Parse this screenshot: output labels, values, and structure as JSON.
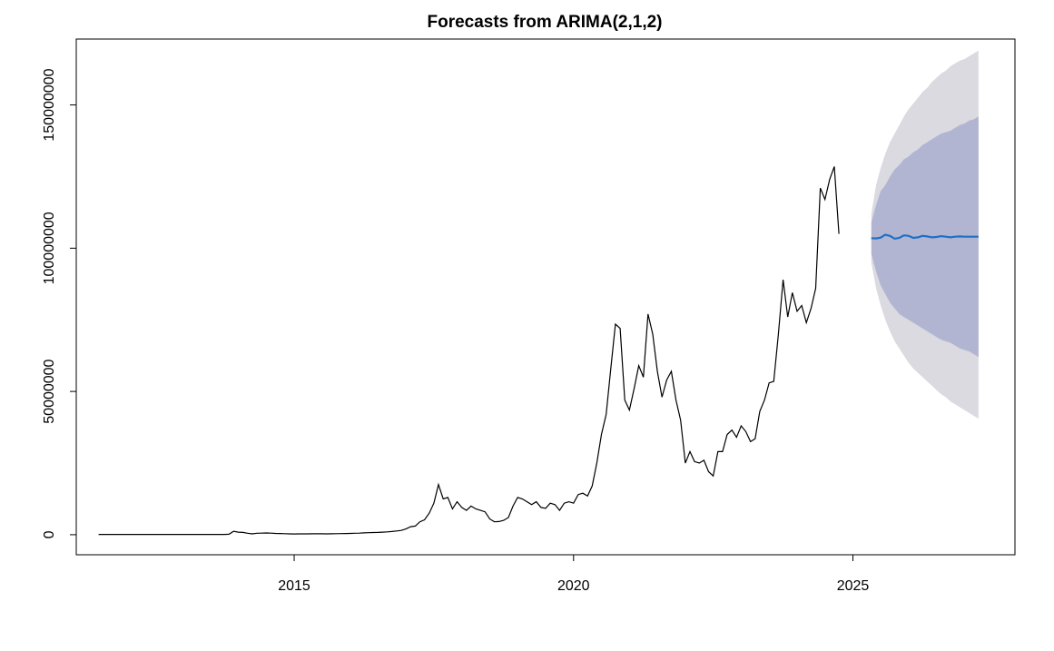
{
  "chart_data": {
    "type": "line",
    "title": "Forecasts from ARIMA(2,1,2)",
    "xlabel": "",
    "ylabel": "",
    "xlim": [
      2011.1,
      2027.9
    ],
    "ylim": [
      -7000000,
      173000000
    ],
    "x_ticks": [
      2015,
      2020,
      2025
    ],
    "x_tick_labels": [
      "2015",
      "2020",
      "2025"
    ],
    "y_ticks": [
      0,
      50000000,
      100000000,
      150000000
    ],
    "y_tick_labels": [
      "0",
      "50000000",
      "100000000",
      "150000000"
    ],
    "grid": false,
    "legend": "none",
    "colors": {
      "observed": "#000000",
      "forecast": "#1f6fc5",
      "band_95": "#dadae0",
      "band_80": "#b1b5d2"
    },
    "observed": {
      "start": 2011.5,
      "step": 0.0833333,
      "values": [
        100000,
        100000,
        100000,
        100000,
        100000,
        100000,
        100000,
        100000,
        100000,
        100000,
        100000,
        100000,
        100000,
        100000,
        100000,
        100000,
        100000,
        100000,
        100000,
        100000,
        100000,
        100000,
        100000,
        100000,
        100000,
        100000,
        100000,
        100000,
        150000,
        1200000,
        900000,
        800000,
        500000,
        300000,
        500000,
        550000,
        600000,
        550000,
        450000,
        400000,
        350000,
        300000,
        250000,
        280000,
        300000,
        300000,
        320000,
        330000,
        320000,
        300000,
        330000,
        350000,
        380000,
        400000,
        450000,
        500000,
        550000,
        650000,
        700000,
        750000,
        800000,
        900000,
        1000000,
        1100000,
        1300000,
        1500000,
        2000000,
        2800000,
        3000000,
        4500000,
        5200000,
        7500000,
        11000000,
        17500000,
        12500000,
        13000000,
        9000000,
        11500000,
        9500000,
        8500000,
        10000000,
        9000000,
        8500000,
        8000000,
        5500000,
        4500000,
        4600000,
        5000000,
        6000000,
        10000000,
        13000000,
        12500000,
        11500000,
        10500000,
        11500000,
        9500000,
        9200000,
        11000000,
        10500000,
        8500000,
        11000000,
        11500000,
        11000000,
        14000000,
        14500000,
        13500000,
        17000000,
        25000000,
        35000000,
        42000000,
        58000000,
        73500000,
        72000000,
        47000000,
        43500000,
        51000000,
        59000000,
        55000000,
        77000000,
        70000000,
        57000000,
        48000000,
        54000000,
        57000000,
        47000000,
        40000000,
        25000000,
        29000000,
        25500000,
        25000000,
        26000000,
        22000000,
        20500000,
        29000000,
        29000000,
        35000000,
        36500000,
        34000000,
        38000000,
        36000000,
        32500000,
        33500000,
        43000000,
        47000000,
        53000000,
        53500000,
        70000000,
        89000000,
        76000000,
        84500000,
        78000000,
        80000000,
        74000000,
        79000000,
        86000000,
        121000000,
        117000000,
        124000000,
        128500000,
        105000000
      ]
    },
    "forecast": {
      "start": 2025.33,
      "step": 0.0833333,
      "mean": [
        103500000,
        103400000,
        103700000,
        104700000,
        104300000,
        103300000,
        103600000,
        104500000,
        104300000,
        103600000,
        103800000,
        104300000,
        104100000,
        103800000,
        103900000,
        104200000,
        104000000,
        103800000,
        104000000,
        104100000,
        104000000,
        104000000,
        104000000,
        104000000
      ],
      "lo80": [
        98000000,
        92000000,
        87000000,
        84000000,
        81000000,
        79000000,
        77000000,
        76000000,
        75000000,
        74000000,
        73000000,
        72000000,
        71000000,
        70000000,
        69000000,
        68000000,
        67500000,
        67000000,
        66000000,
        65000000,
        64500000,
        64000000,
        63000000,
        62000000
      ],
      "hi80": [
        109000000,
        115000000,
        120000000,
        122000000,
        125000000,
        127500000,
        129000000,
        131000000,
        132000000,
        133500000,
        134500000,
        136000000,
        137000000,
        138000000,
        139000000,
        140000000,
        140500000,
        141000000,
        142000000,
        143000000,
        143500000,
        144500000,
        145000000,
        146000000
      ],
      "lo95": [
        95000000,
        86000000,
        80000000,
        75000000,
        71000000,
        67500000,
        65000000,
        62500000,
        60000000,
        58000000,
        56500000,
        55000000,
        53500000,
        52000000,
        50500000,
        49000000,
        48000000,
        46500000,
        45500000,
        44500000,
        43500000,
        42500000,
        41500000,
        40500000
      ],
      "hi95": [
        112000000,
        122000000,
        128000000,
        133000000,
        137000000,
        140000000,
        143000000,
        146000000,
        148500000,
        150500000,
        152500000,
        154500000,
        156000000,
        158000000,
        159500000,
        161000000,
        162000000,
        163500000,
        164500000,
        165500000,
        166000000,
        167000000,
        168000000,
        169000000
      ]
    }
  }
}
